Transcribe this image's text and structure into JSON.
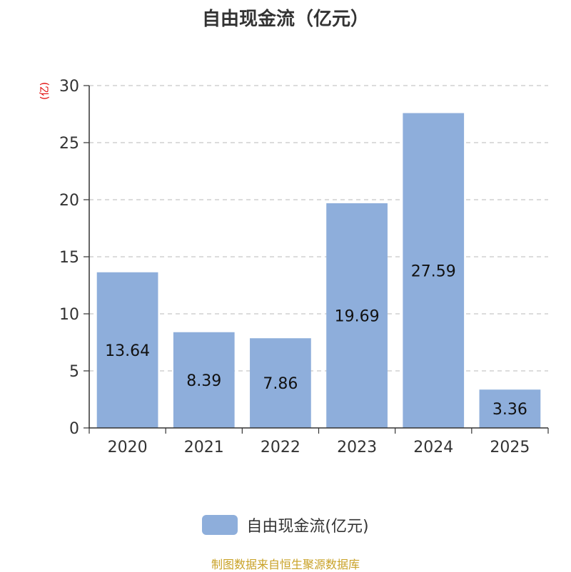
{
  "title": "自由现金流（亿元）",
  "unit_label": "(亿)",
  "source": "制图数据来自恒生聚源数据库",
  "colors": {
    "bar": "#8eaedb",
    "grid": "#c8c8c8",
    "axis": "#333333"
  },
  "chart_data": {
    "type": "bar",
    "title": "自由现金流（亿元）",
    "ylabel": "(亿)",
    "categories": [
      "2020",
      "2021",
      "2022",
      "2023",
      "2024",
      "2025"
    ],
    "series": [
      {
        "name": "自由现金流(亿元)",
        "values": [
          13.64,
          8.39,
          7.86,
          19.69,
          27.59,
          3.36
        ]
      }
    ],
    "ylim": [
      0,
      30
    ],
    "yticks": [
      0,
      5,
      10,
      15,
      20,
      25,
      30
    ],
    "grid": true,
    "legend": "bottom"
  }
}
